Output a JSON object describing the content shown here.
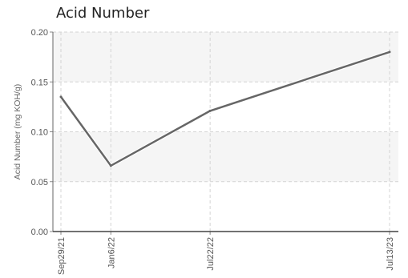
{
  "chart_data": {
    "type": "line",
    "title": "Acid Number",
    "xlabel": "",
    "ylabel": "Acid Number (mg KOH/g)",
    "categories": [
      "Sep29/21",
      "Jan6/22",
      "Jul22/22",
      "Jul13/23"
    ],
    "x": [
      "2021-09-29",
      "2022-01-06",
      "2022-07-22",
      "2023-07-13"
    ],
    "series": [
      {
        "values": [
          0.135,
          0.066,
          0.121,
          0.18
        ],
        "color": "#666666"
      }
    ],
    "ylim": [
      0,
      0.2
    ],
    "yticks": [
      "0.00",
      "0.05",
      "0.10",
      "0.15",
      "0.20"
    ],
    "grid": true,
    "grid_style": "dashed",
    "band_color": "#f5f5f5",
    "legend": "none"
  }
}
